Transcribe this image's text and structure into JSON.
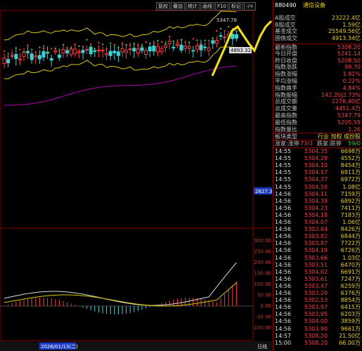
{
  "toolbar": {
    "buttons": [
      "复权",
      "叠加",
      "统计",
      "画线",
      "F10",
      "标记",
      "-/+"
    ]
  },
  "stock": {
    "code": "880490",
    "name": "通信设备"
  },
  "summary": {
    "rows": [
      [
        "A股成交",
        "23222.4亿"
      ],
      [
        "B股成交",
        "1.59亿"
      ],
      [
        "基金成交",
        "25549.56亿"
      ],
      [
        "国债成交",
        "4913.34亿"
      ],
      [
        "最新指数",
        "5308.20"
      ],
      [
        "今日开盘",
        "5241.14"
      ],
      [
        "昨日收盘",
        "5208.50"
      ],
      [
        "指数涨跌",
        "99.70"
      ],
      [
        "指数涨幅",
        "1.91%"
      ],
      [
        "平均涨幅",
        "0.22%"
      ],
      [
        "指数换手",
        "4.84%"
      ],
      [
        "指数振幅",
        "142.20|2.73%"
      ],
      [
        "总成交额",
        "2276.40亿"
      ],
      [
        "总成交量",
        "4451.4万"
      ],
      [
        "最高指数",
        "5347.79"
      ],
      [
        "最低指数",
        "5205.59"
      ],
      [
        "指数量比",
        "1.26"
      ]
    ]
  },
  "board_type": {
    "label": "板块类型",
    "value": "行业 加权 成份股"
  },
  "breadth": {
    "up_label": "涨家:涨停",
    "up": "73/3",
    "down_label": "跌家:跌停",
    "down": "59/0"
  },
  "ticks": {
    "rows": [
      [
        "14:55",
        "5304.35",
        "6698万"
      ],
      [
        "14:55",
        "5304.28",
        "4552万"
      ],
      [
        "14:55",
        "5304.10",
        "8454万"
      ],
      [
        "14:55",
        "5304.17",
        "6911万"
      ],
      [
        "14:55",
        "5304.37",
        "6972万"
      ],
      [
        "14:55",
        "5304.50",
        "1.08亿"
      ],
      [
        "14:56",
        "5304.11",
        "7159万"
      ],
      [
        "14:56",
        "5304.39",
        "6892万"
      ],
      [
        "14:56",
        "5304.23",
        "7411万"
      ],
      [
        "14:56",
        "5304.18",
        "7183万"
      ],
      [
        "14:56",
        "5304.07",
        "1.06亿"
      ],
      [
        "14:56",
        "5303.84",
        "8426万"
      ],
      [
        "14:56",
        "5303.82",
        "6844万"
      ],
      [
        "14:56",
        "5303.87",
        "7722万"
      ],
      [
        "14:56",
        "5304.19",
        "6726万"
      ],
      [
        "14:56",
        "5303.66",
        "1.03亿"
      ],
      [
        "14:56",
        "5303.51",
        "6470万"
      ],
      [
        "14:56",
        "5304.02",
        "6691万"
      ],
      [
        "14:56",
        "5303.61",
        "7247万"
      ],
      [
        "14:56",
        "5303.47",
        "6259万"
      ],
      [
        "14:56",
        "5303.20",
        "6376万"
      ],
      [
        "14:56",
        "5302.53",
        "8854万"
      ],
      [
        "14:56",
        "5303.97",
        "6415万"
      ],
      [
        "14:56",
        "5303.95",
        "6203万"
      ],
      [
        "14:56",
        "5304.00",
        "3859万"
      ],
      [
        "14:56",
        "5303.90",
        "9661万"
      ],
      [
        "14:57",
        "5308.20",
        "21.50亿"
      ],
      [
        "15:00",
        "5308.20",
        "66.00万"
      ]
    ]
  },
  "chart": {
    "high_mark": "5347.78",
    "low_mark": "4893.32",
    "level_box": "2627.3",
    "macd_axis": [
      "300.00",
      "250.00",
      "200.00",
      "150.00",
      "100.00",
      "50.00",
      "0.00",
      "-50.00",
      "-100.00"
    ]
  },
  "footer": {
    "date": "2026/01/13(二)",
    "period": "日线"
  }
}
